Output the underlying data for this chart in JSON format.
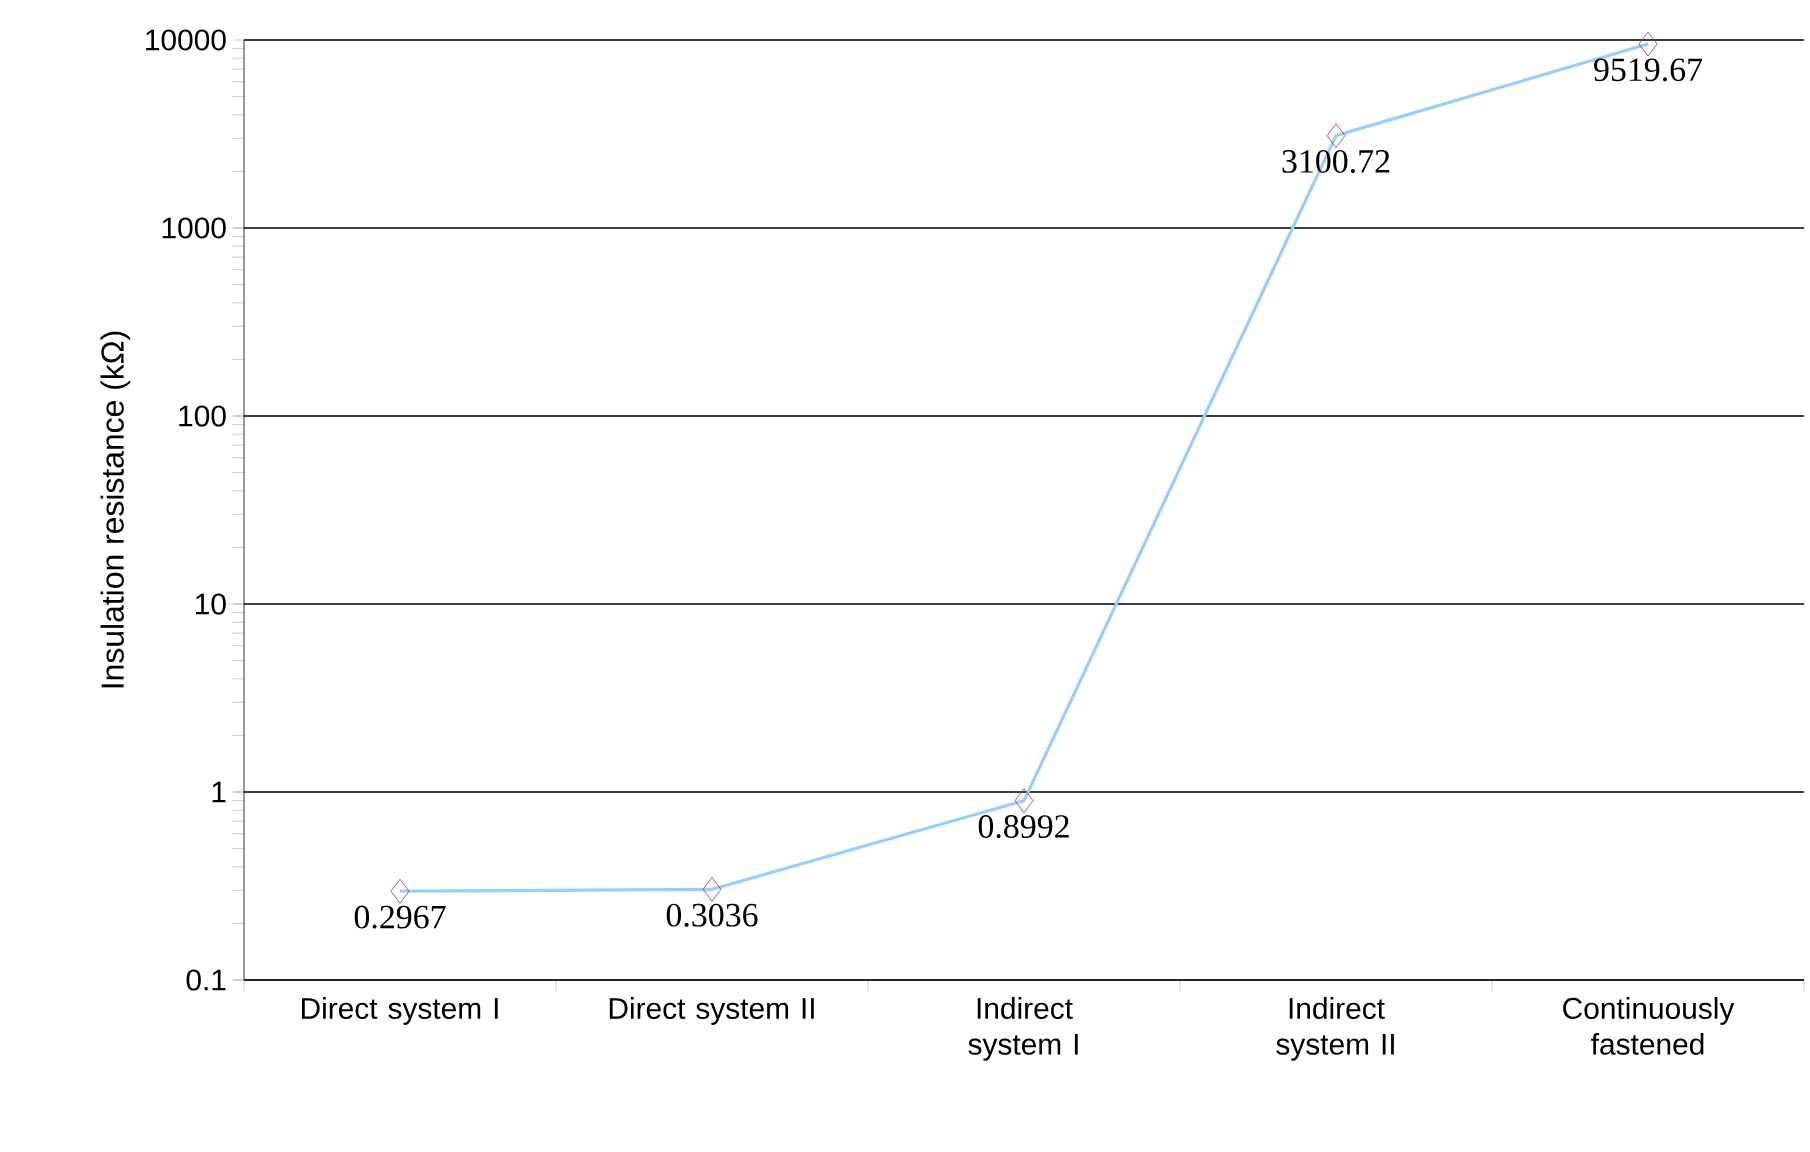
{
  "chart_data": {
    "type": "line",
    "ylabel": "Insulation resistance (kΩ)",
    "categories": [
      "Direct system I",
      "Direct system II",
      "Indirect system I",
      "Indirect system II",
      "Continuously fastened"
    ],
    "values": [
      0.2967,
      0.3036,
      0.8992,
      3100.72,
      9519.67
    ],
    "color": "#99ccff",
    "colors": [
      "#993366",
      "#993366",
      "#993366",
      "#993366",
      "#993366"
    ],
    "marker": "diamond",
    "line_style": "solid",
    "log": "y",
    "grid": "y",
    "data_labels": true,
    "ylim": [
      0.1,
      10000
    ],
    "yticks": [
      0.1,
      1,
      10,
      100,
      1000,
      10000
    ]
  }
}
